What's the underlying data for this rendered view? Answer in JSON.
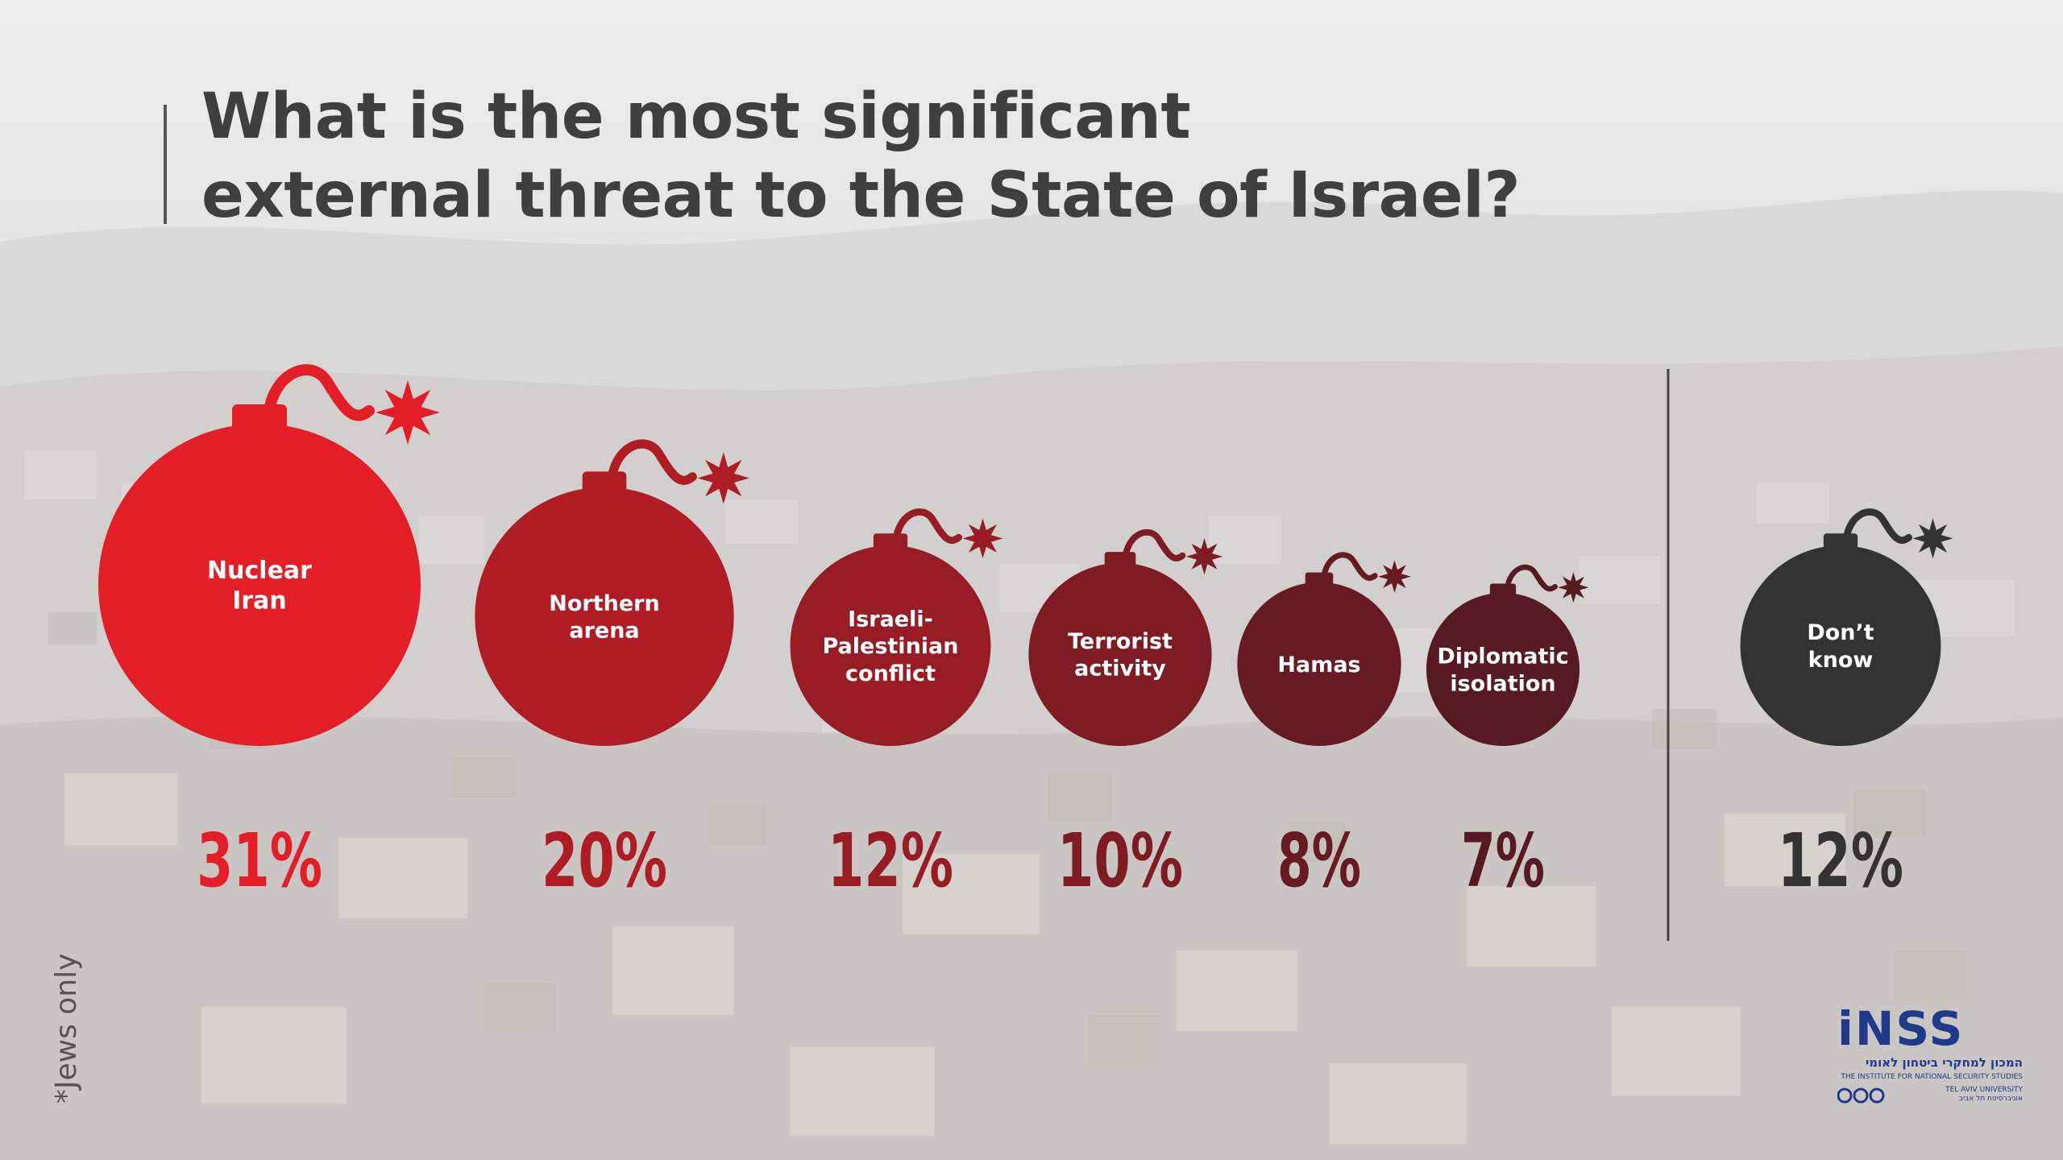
{
  "title": {
    "line1": "What is the most significant",
    "line2": "external threat to the State of Israel?"
  },
  "footnote": "*Jews only",
  "logo": {
    "main": "iNSS",
    "hebrew": "המכון למחקרי ביטחון לאומי",
    "english": "THE INSTITUTE FOR NATIONAL SECURITY STUDIES",
    "university_en": "TEL AVIV UNIVERSITY",
    "university_he": "אוניברסיטת תל אביב"
  },
  "chart_data": {
    "type": "bar",
    "unit": "%",
    "categories": [
      "Nuclear Iran",
      "Northern arena",
      "Israeli-Palestinian conflict",
      "Terrorist activity",
      "Hamas",
      "Diplomatic isolation",
      "Don’t know"
    ],
    "category_lines": [
      [
        "Nuclear",
        "Iran"
      ],
      [
        "Northern",
        "arena"
      ],
      [
        "Israeli-",
        "Palestinian",
        "conflict"
      ],
      [
        "Terrorist",
        "activity"
      ],
      [
        "Hamas"
      ],
      [
        "Diplomatic",
        "isolation"
      ],
      [
        "Don’t",
        "know"
      ]
    ],
    "values": [
      31,
      20,
      12,
      10,
      8,
      7,
      12
    ],
    "value_labels": [
      "31%",
      "20%",
      "12%",
      "10%",
      "8%",
      "7%",
      "12%"
    ],
    "colors": [
      "#e31e26",
      "#b01c24",
      "#971c24",
      "#7f1b23",
      "#671a22",
      "#571922",
      "#333333"
    ],
    "legend": "none",
    "grid": false
  }
}
